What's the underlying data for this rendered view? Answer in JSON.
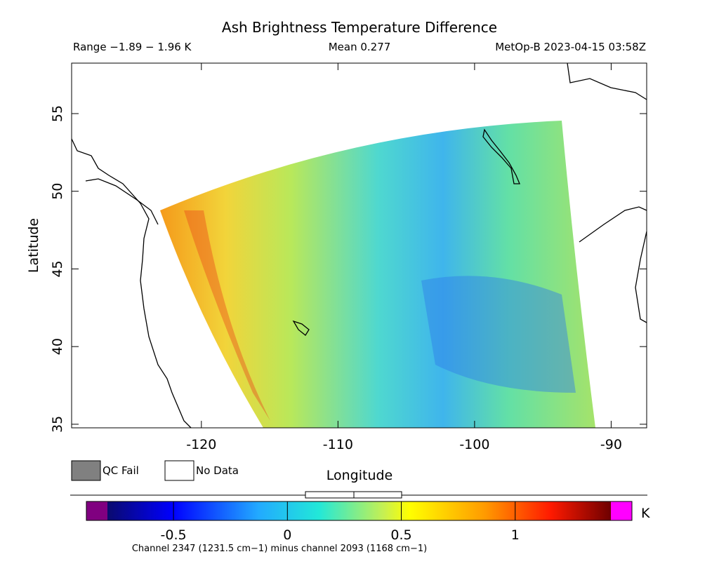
{
  "title": "Ash Brightness Temperature Difference",
  "range_text": "Range −1.89 − 1.96 K",
  "mean_text": "Mean 0.277",
  "source_text": "MetOp-B 2023-04-15 03:58Z",
  "map": {
    "xlabel": "Longitude",
    "ylabel": "Latitude",
    "xlim": [
      -129.5,
      -87.4
    ],
    "ylim": [
      34.77,
      58.25
    ],
    "xticks": [
      -120,
      -110,
      -100,
      -90
    ],
    "yticks": [
      35,
      40,
      45,
      50,
      55
    ]
  },
  "legend": [
    "QC Fail",
    "No Data"
  ],
  "colorbar": {
    "lim": [
      -0.79,
      1.42
    ],
    "ticks": [
      -0.5,
      0,
      0.5,
      1
    ],
    "unit": "K"
  },
  "footnote": "Channel 2347 (1231.5 cm−1) minus channel 2093 (1168 cm−1)"
}
